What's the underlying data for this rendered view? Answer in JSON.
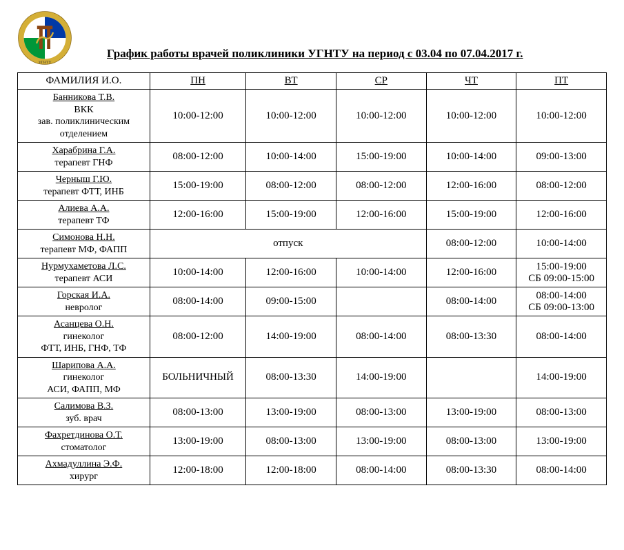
{
  "title": "График работы врачей поликлиники УГНТУ на период с 03.04 по 07.04.2017 г.",
  "columns": {
    "name": "ФАМИЛИЯ И.О.",
    "mon": "ПН",
    "tue": "ВТ",
    "wed": "СР",
    "thu": "ЧТ",
    "fri": "ПТ"
  },
  "logo": {
    "text_top": "УГНТУ",
    "colors": {
      "outer": "#d4af37",
      "blue": "#0039a6",
      "green": "#009739",
      "white": "#ffffff",
      "brown": "#8b4513"
    }
  },
  "rows": [
    {
      "name": "Банникова Т.В.",
      "role": "ВКК\nзав. поликлиническим\nотделением",
      "cells": [
        "10:00-12:00",
        "10:00-12:00",
        "10:00-12:00",
        "10:00-12:00",
        "10:00-12:00"
      ]
    },
    {
      "name": "Харабрина Г.А.",
      "role": "терапевт ГНФ",
      "cells": [
        "08:00-12:00",
        "10:00-14:00",
        "15:00-19:00",
        "10:00-14:00",
        "09:00-13:00"
      ]
    },
    {
      "name": "Черныш Г.Ю.",
      "role": "терапевт ФТТ, ИНБ",
      "cells": [
        "15:00-19:00",
        "08:00-12:00",
        "08:00-12:00",
        "12:00-16:00",
        "08:00-12:00"
      ]
    },
    {
      "name": "Алиева А.А.",
      "role": "терапевт ТФ",
      "cells": [
        "12:00-16:00",
        "15:00-19:00",
        "12:00-16:00",
        "15:00-19:00",
        "12:00-16:00"
      ]
    },
    {
      "name": "Симонова Н.Н.",
      "role": "терапевт МФ, ФАПП",
      "merged": {
        "span": 3,
        "text": "отпуск"
      },
      "cells_after": [
        "08:00-12:00",
        "10:00-14:00"
      ]
    },
    {
      "name": "Нурмухаметова Л.С.",
      "role": "терапевт АСИ",
      "cells": [
        "10:00-14:00",
        "12:00-16:00",
        "10:00-14:00",
        "12:00-16:00",
        "15:00-19:00\nСБ 09:00-15:00"
      ]
    },
    {
      "name": "Горская И.А.",
      "role": "невролог",
      "cells": [
        "08:00-14:00",
        "09:00-15:00",
        "",
        "08:00-14:00",
        "08:00-14:00\nСБ 09:00-13:00"
      ]
    },
    {
      "name": "Асанцева О.Н.",
      "role": "гинеколог\nФТТ, ИНБ, ГНФ, ТФ",
      "cells": [
        "08:00-12:00",
        "14:00-19:00",
        "08:00-14:00",
        "08:00-13:30",
        "08:00-14:00"
      ]
    },
    {
      "name": "Шарипова А.А.",
      "role": "гинеколог\nАСИ, ФАПП, МФ",
      "cells": [
        "БОЛЬНИЧНЫЙ",
        "08:00-13:30",
        "14:00-19:00",
        "",
        "14:00-19:00"
      ]
    },
    {
      "name": "Салимова В.З.",
      "role": "зуб. врач",
      "cells": [
        "08:00-13:00",
        "13:00-19:00",
        "08:00-13:00",
        "13:00-19:00",
        "08:00-13:00"
      ]
    },
    {
      "name": "Фахретдинова О.Т.",
      "role": "стоматолог",
      "cells": [
        "13:00-19:00",
        "08:00-13:00",
        "13:00-19:00",
        "08:00-13:00",
        "13:00-19:00"
      ]
    },
    {
      "name": "Ахмадуллина Э.Ф.",
      "role": "хирург",
      "cells": [
        "12:00-18:00",
        "12:00-18:00",
        "08:00-14:00",
        "08:00-13:30",
        "08:00-14:00"
      ]
    }
  ]
}
